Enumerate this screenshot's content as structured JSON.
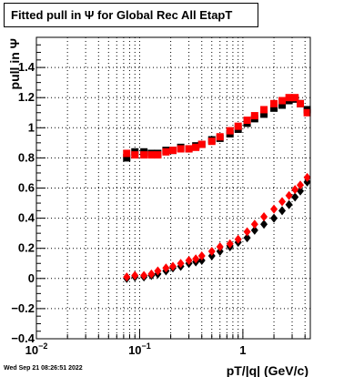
{
  "title": "Fitted pull in  Ψ  for Global Rec All EtapT",
  "footer": "Wed Sep 21 08:26:51 2022",
  "chart_data": {
    "type": "scatter",
    "title": "Fitted pull in  Ψ  for Global Rec All EtapT",
    "xlabel": "pT/|q| (GeV/c)",
    "ylabel": "pull in  Ψ",
    "xscale": "log",
    "xlim": [
      0.01,
      4.5
    ],
    "ylim": [
      -0.4,
      1.6
    ],
    "grid": true,
    "x_ticks": [
      {
        "value": 0.01,
        "base": "10",
        "exp": "−2"
      },
      {
        "value": 0.1,
        "base": "10",
        "exp": "−1"
      },
      {
        "value": 1,
        "base": "1",
        "exp": ""
      }
    ],
    "y_ticks": [
      {
        "value": -0.4,
        "label": "−0.4"
      },
      {
        "value": -0.2,
        "label": "−0.2"
      },
      {
        "value": 0,
        "label": "0"
      },
      {
        "value": 0.2,
        "label": "0.2"
      },
      {
        "value": 0.4,
        "label": "0.4"
      },
      {
        "value": 0.6,
        "label": "0.6"
      },
      {
        "value": 0.8,
        "label": "0.8"
      },
      {
        "value": 1,
        "label": "1"
      },
      {
        "value": 1.2,
        "label": "1.2"
      },
      {
        "value": 1.4,
        "label": "1.4"
      }
    ],
    "series": [
      {
        "color": "#000000",
        "marker": "square",
        "x": [
          0.075,
          0.09,
          0.11,
          0.13,
          0.15,
          0.18,
          0.21,
          0.25,
          0.3,
          0.35,
          0.4,
          0.5,
          0.6,
          0.75,
          0.9,
          1.1,
          1.3,
          1.6,
          2.0,
          2.4,
          2.8,
          3.2,
          3.6,
          4.2
        ],
        "y": [
          0.8,
          0.84,
          0.84,
          0.83,
          0.83,
          0.85,
          0.85,
          0.87,
          0.86,
          0.88,
          0.89,
          0.92,
          0.93,
          0.96,
          0.99,
          1.03,
          1.06,
          1.09,
          1.13,
          1.15,
          1.18,
          1.19,
          1.16,
          1.12
        ]
      },
      {
        "color": "#ff0000",
        "marker": "square",
        "x": [
          0.075,
          0.09,
          0.11,
          0.13,
          0.15,
          0.18,
          0.21,
          0.25,
          0.3,
          0.35,
          0.4,
          0.5,
          0.6,
          0.75,
          0.9,
          1.1,
          1.3,
          1.6,
          2.0,
          2.4,
          2.8,
          3.2,
          3.6,
          4.2
        ],
        "y": [
          0.83,
          0.82,
          0.82,
          0.82,
          0.82,
          0.84,
          0.85,
          0.86,
          0.86,
          0.87,
          0.89,
          0.91,
          0.94,
          0.98,
          1.01,
          1.05,
          1.08,
          1.12,
          1.16,
          1.18,
          1.2,
          1.2,
          1.16,
          1.1
        ]
      },
      {
        "color": "#000000",
        "marker": "diamond",
        "x": [
          0.075,
          0.09,
          0.11,
          0.13,
          0.15,
          0.18,
          0.21,
          0.25,
          0.3,
          0.35,
          0.4,
          0.5,
          0.6,
          0.75,
          0.9,
          1.1,
          1.3,
          1.6,
          2.0,
          2.4,
          2.8,
          3.2,
          3.6,
          4.2
        ],
        "y": [
          0.0,
          0.01,
          0.01,
          0.02,
          0.03,
          0.05,
          0.07,
          0.08,
          0.1,
          0.11,
          0.12,
          0.15,
          0.18,
          0.21,
          0.24,
          0.27,
          0.32,
          0.36,
          0.4,
          0.45,
          0.49,
          0.54,
          0.58,
          0.64
        ]
      },
      {
        "color": "#ff0000",
        "marker": "diamond",
        "x": [
          0.075,
          0.09,
          0.11,
          0.13,
          0.15,
          0.18,
          0.21,
          0.25,
          0.3,
          0.35,
          0.4,
          0.5,
          0.6,
          0.75,
          0.9,
          1.1,
          1.3,
          1.6,
          2.0,
          2.4,
          2.8,
          3.2,
          3.6,
          4.2
        ],
        "y": [
          0.01,
          0.02,
          0.02,
          0.03,
          0.05,
          0.07,
          0.08,
          0.1,
          0.12,
          0.13,
          0.15,
          0.18,
          0.21,
          0.23,
          0.26,
          0.31,
          0.36,
          0.41,
          0.46,
          0.51,
          0.55,
          0.59,
          0.62,
          0.67
        ]
      }
    ]
  }
}
